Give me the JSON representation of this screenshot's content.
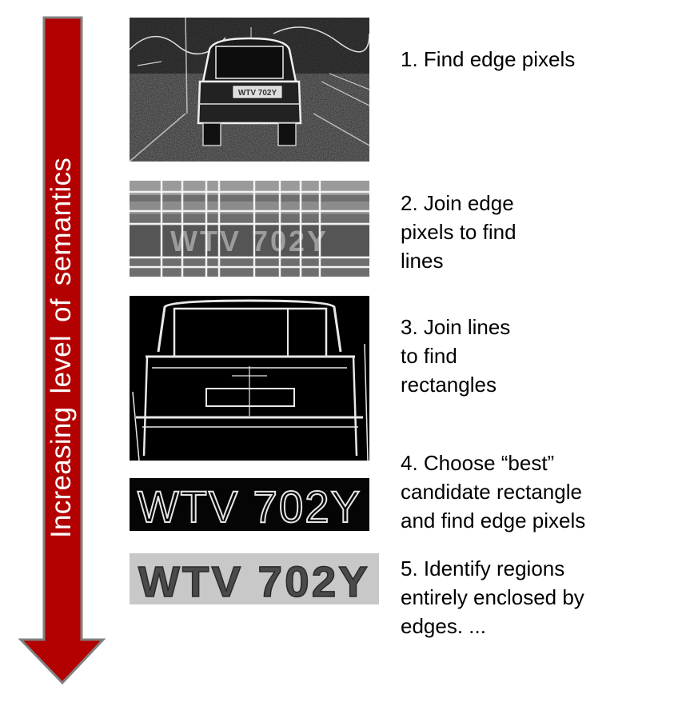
{
  "axis": {
    "label": "Increasing level of semantics",
    "arrow_color": "#b30000",
    "arrow_outline": "#808080"
  },
  "plate_text": "WTV 702Y",
  "steps": [
    {
      "lines": [
        "1. Find edge pixels"
      ]
    },
    {
      "lines": [
        "2. Join edge",
        "pixels to find",
        "lines"
      ]
    },
    {
      "lines": [
        "3. Join lines",
        "to find",
        "rectangles"
      ]
    },
    {
      "lines": [
        "4. Choose “best”",
        "candidate rectangle",
        "and find edge pixels"
      ]
    },
    {
      "lines": [
        "5. Identify regions",
        "entirely enclosed by",
        "edges. ..."
      ]
    }
  ]
}
